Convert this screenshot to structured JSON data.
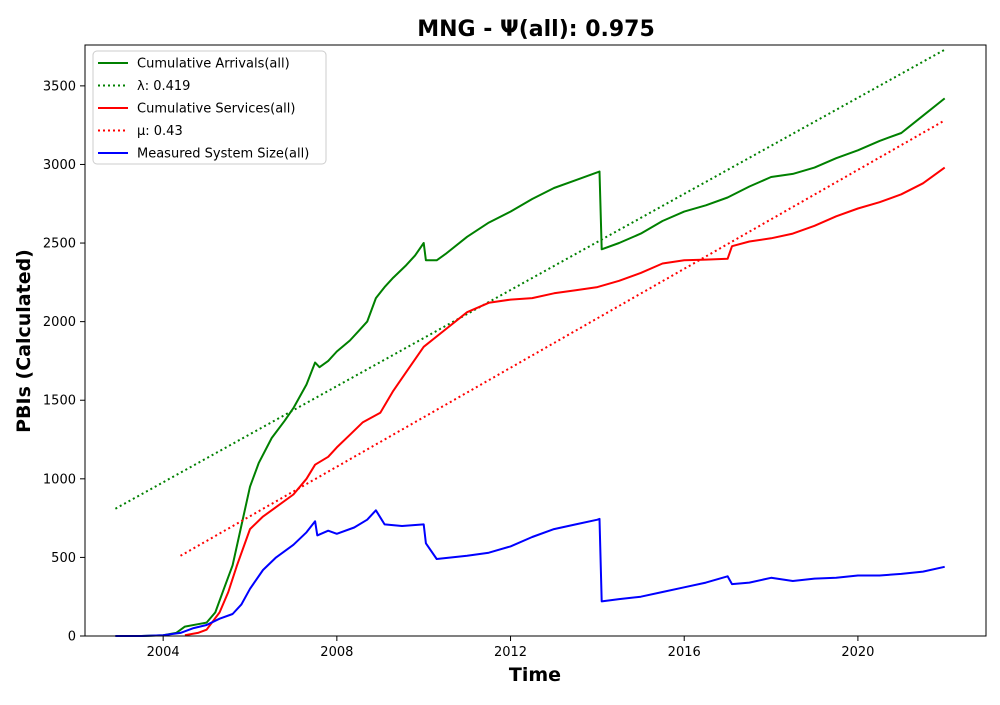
{
  "chart_data": {
    "type": "line",
    "title": "MNG -  Ψ(all): 0.975",
    "xlabel": "Time",
    "ylabel": "PBIs (Calculated)",
    "xlim": [
      2002.2,
      2022.95
    ],
    "ylim": [
      0,
      3760
    ],
    "x_ticks": [
      2004,
      2008,
      2012,
      2016,
      2020
    ],
    "y_ticks": [
      0,
      500,
      1000,
      1500,
      2000,
      2500,
      3000,
      3500
    ],
    "grid": false,
    "legend_position": "top-left",
    "series": [
      {
        "name": "Cumulative Arrivals(all)",
        "color": "#008000",
        "style": "solid",
        "points": [
          [
            2002.9,
            0
          ],
          [
            2003.5,
            0
          ],
          [
            2004.0,
            5
          ],
          [
            2004.3,
            20
          ],
          [
            2004.5,
            60
          ],
          [
            2004.8,
            75
          ],
          [
            2005.0,
            85
          ],
          [
            2005.2,
            150
          ],
          [
            2005.4,
            300
          ],
          [
            2005.6,
            450
          ],
          [
            2005.8,
            700
          ],
          [
            2006.0,
            950
          ],
          [
            2006.2,
            1100
          ],
          [
            2006.5,
            1260
          ],
          [
            2006.8,
            1370
          ],
          [
            2007.0,
            1450
          ],
          [
            2007.3,
            1600
          ],
          [
            2007.5,
            1740
          ],
          [
            2007.6,
            1710
          ],
          [
            2007.8,
            1750
          ],
          [
            2008.0,
            1810
          ],
          [
            2008.3,
            1880
          ],
          [
            2008.5,
            1940
          ],
          [
            2008.7,
            2000
          ],
          [
            2008.9,
            2150
          ],
          [
            2009.1,
            2220
          ],
          [
            2009.3,
            2280
          ],
          [
            2009.6,
            2360
          ],
          [
            2009.8,
            2420
          ],
          [
            2010.0,
            2500
          ],
          [
            2010.05,
            2390
          ],
          [
            2010.3,
            2390
          ],
          [
            2010.5,
            2430
          ],
          [
            2011.0,
            2540
          ],
          [
            2011.5,
            2630
          ],
          [
            2012.0,
            2700
          ],
          [
            2012.5,
            2780
          ],
          [
            2013.0,
            2850
          ],
          [
            2013.5,
            2900
          ],
          [
            2014.0,
            2950
          ],
          [
            2014.05,
            2955
          ],
          [
            2014.1,
            2460
          ],
          [
            2014.5,
            2500
          ],
          [
            2015.0,
            2560
          ],
          [
            2015.5,
            2640
          ],
          [
            2016.0,
            2700
          ],
          [
            2016.5,
            2740
          ],
          [
            2017.0,
            2790
          ],
          [
            2017.5,
            2860
          ],
          [
            2018.0,
            2920
          ],
          [
            2018.5,
            2940
          ],
          [
            2019.0,
            2980
          ],
          [
            2019.5,
            3040
          ],
          [
            2020.0,
            3090
          ],
          [
            2020.5,
            3150
          ],
          [
            2021.0,
            3200
          ],
          [
            2021.5,
            3310
          ],
          [
            2022.0,
            3420
          ]
        ]
      },
      {
        "name": "λ: 0.419",
        "color": "#008000",
        "style": "dotted",
        "points": [
          [
            2002.9,
            810
          ],
          [
            2022.0,
            3730
          ]
        ]
      },
      {
        "name": "Cumulative Services(all)",
        "color": "#ff0000",
        "style": "solid",
        "points": [
          [
            2004.5,
            5
          ],
          [
            2004.8,
            20
          ],
          [
            2005.0,
            40
          ],
          [
            2005.3,
            150
          ],
          [
            2005.5,
            280
          ],
          [
            2005.7,
            450
          ],
          [
            2006.0,
            680
          ],
          [
            2006.3,
            760
          ],
          [
            2006.6,
            820
          ],
          [
            2007.0,
            900
          ],
          [
            2007.3,
            1000
          ],
          [
            2007.5,
            1090
          ],
          [
            2007.8,
            1140
          ],
          [
            2008.0,
            1200
          ],
          [
            2008.3,
            1280
          ],
          [
            2008.6,
            1360
          ],
          [
            2009.0,
            1420
          ],
          [
            2009.3,
            1560
          ],
          [
            2009.6,
            1680
          ],
          [
            2010.0,
            1840
          ],
          [
            2010.5,
            1950
          ],
          [
            2011.0,
            2060
          ],
          [
            2011.5,
            2120
          ],
          [
            2012.0,
            2140
          ],
          [
            2012.5,
            2150
          ],
          [
            2013.0,
            2180
          ],
          [
            2013.5,
            2200
          ],
          [
            2014.0,
            2220
          ],
          [
            2014.5,
            2260
          ],
          [
            2015.0,
            2310
          ],
          [
            2015.5,
            2370
          ],
          [
            2016.0,
            2390
          ],
          [
            2016.5,
            2395
          ],
          [
            2017.0,
            2400
          ],
          [
            2017.1,
            2480
          ],
          [
            2017.5,
            2510
          ],
          [
            2018.0,
            2530
          ],
          [
            2018.5,
            2560
          ],
          [
            2019.0,
            2610
          ],
          [
            2019.5,
            2670
          ],
          [
            2020.0,
            2720
          ],
          [
            2020.5,
            2760
          ],
          [
            2021.0,
            2810
          ],
          [
            2021.5,
            2880
          ],
          [
            2022.0,
            2980
          ]
        ]
      },
      {
        "name": "μ: 0.43",
        "color": "#ff0000",
        "style": "dotted",
        "points": [
          [
            2004.4,
            510
          ],
          [
            2022.0,
            3280
          ]
        ]
      },
      {
        "name": "Measured System Size(all)",
        "color": "#0000ff",
        "style": "solid",
        "points": [
          [
            2002.9,
            0
          ],
          [
            2003.5,
            0
          ],
          [
            2004.0,
            5
          ],
          [
            2004.4,
            20
          ],
          [
            2004.7,
            50
          ],
          [
            2005.0,
            70
          ],
          [
            2005.3,
            110
          ],
          [
            2005.6,
            140
          ],
          [
            2005.8,
            200
          ],
          [
            2006.0,
            300
          ],
          [
            2006.3,
            420
          ],
          [
            2006.6,
            500
          ],
          [
            2007.0,
            580
          ],
          [
            2007.3,
            660
          ],
          [
            2007.5,
            730
          ],
          [
            2007.55,
            640
          ],
          [
            2007.8,
            670
          ],
          [
            2008.0,
            650
          ],
          [
            2008.4,
            690
          ],
          [
            2008.7,
            740
          ],
          [
            2008.9,
            800
          ],
          [
            2009.1,
            710
          ],
          [
            2009.5,
            700
          ],
          [
            2010.0,
            710
          ],
          [
            2010.05,
            590
          ],
          [
            2010.3,
            490
          ],
          [
            2011.0,
            510
          ],
          [
            2011.5,
            530
          ],
          [
            2012.0,
            570
          ],
          [
            2012.5,
            630
          ],
          [
            2013.0,
            680
          ],
          [
            2013.5,
            710
          ],
          [
            2014.0,
            740
          ],
          [
            2014.05,
            745
          ],
          [
            2014.1,
            220
          ],
          [
            2014.5,
            235
          ],
          [
            2015.0,
            250
          ],
          [
            2015.5,
            280
          ],
          [
            2016.0,
            310
          ],
          [
            2016.5,
            340
          ],
          [
            2017.0,
            380
          ],
          [
            2017.1,
            330
          ],
          [
            2017.5,
            340
          ],
          [
            2018.0,
            370
          ],
          [
            2018.5,
            350
          ],
          [
            2019.0,
            365
          ],
          [
            2019.5,
            370
          ],
          [
            2020.0,
            385
          ],
          [
            2020.5,
            385
          ],
          [
            2021.0,
            395
          ],
          [
            2021.5,
            410
          ],
          [
            2022.0,
            440
          ]
        ]
      }
    ]
  }
}
